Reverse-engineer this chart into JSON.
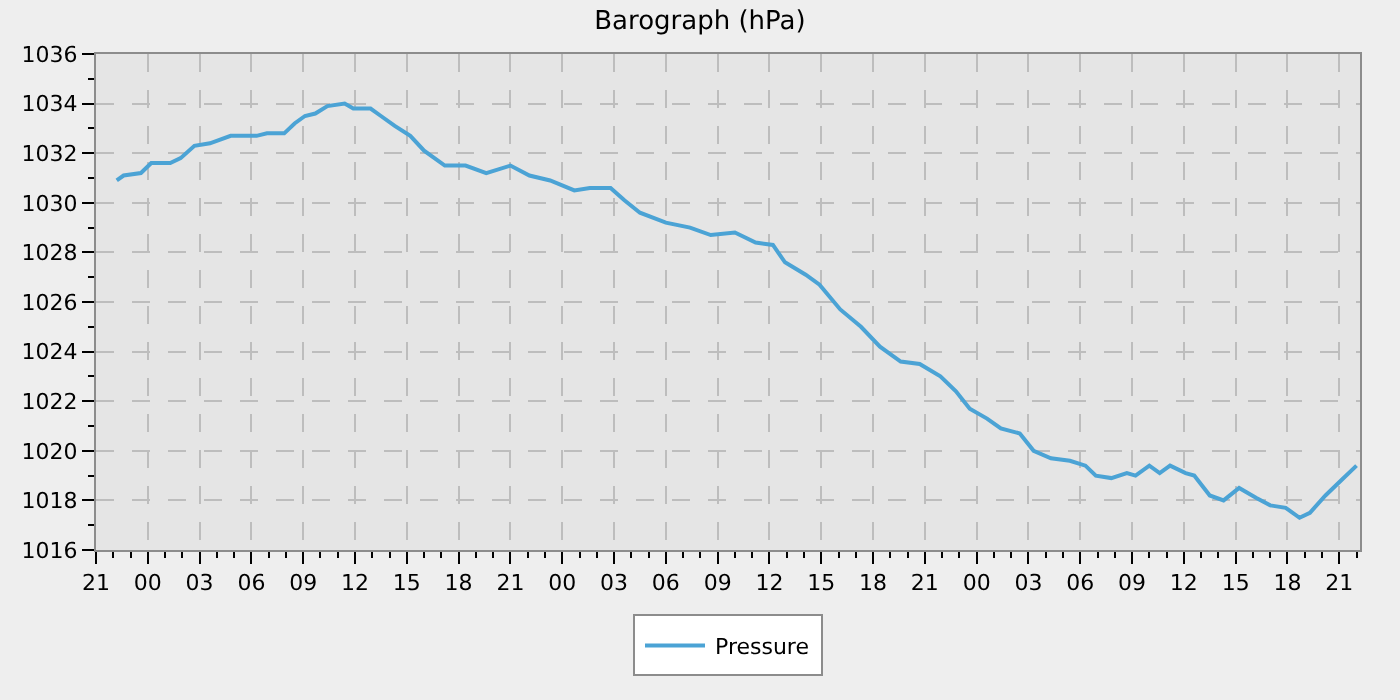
{
  "chart_data": {
    "type": "line",
    "title": "Barograph (hPa)",
    "xlim": [
      "--01-01T21:00",
      "--01-04T22:12"
    ],
    "xticks": [
      {
        "value": "--01-01T21:00",
        "label": "21"
      },
      {
        "value": "--01-02T00:00",
        "label": "00"
      },
      {
        "value": "--01-02T03:00",
        "label": "03"
      },
      {
        "value": "--01-02T06:00",
        "label": "06"
      },
      {
        "value": "--01-02T09:00",
        "label": "09"
      },
      {
        "value": "--01-02T12:00",
        "label": "12"
      },
      {
        "value": "--01-02T15:00",
        "label": "15"
      },
      {
        "value": "--01-02T18:00",
        "label": "18"
      },
      {
        "value": "--01-02T21:00",
        "label": "21"
      },
      {
        "value": "--01-03T00:00",
        "label": "00"
      },
      {
        "value": "--01-03T03:00",
        "label": "03"
      },
      {
        "value": "--01-03T06:00",
        "label": "06"
      },
      {
        "value": "--01-03T09:00",
        "label": "09"
      },
      {
        "value": "--01-03T12:00",
        "label": "12"
      },
      {
        "value": "--01-03T15:00",
        "label": "15"
      },
      {
        "value": "--01-03T18:00",
        "label": "18"
      },
      {
        "value": "--01-03T21:00",
        "label": "21"
      },
      {
        "value": "--01-04T00:00",
        "label": "00"
      },
      {
        "value": "--01-04T03:00",
        "label": "03"
      },
      {
        "value": "--01-04T06:00",
        "label": "06"
      },
      {
        "value": "--01-04T09:00",
        "label": "09"
      },
      {
        "value": "--01-04T12:00",
        "label": "12"
      },
      {
        "value": "--01-04T15:00",
        "label": "15"
      },
      {
        "value": "--01-04T18:00",
        "label": "18"
      },
      {
        "value": "--01-04T21:00",
        "label": "21"
      }
    ],
    "ylim": [
      1016,
      1036
    ],
    "yticks": [
      1016,
      1018,
      1020,
      1022,
      1024,
      1026,
      1028,
      1030,
      1032,
      1034,
      1036
    ],
    "grid": true,
    "legend": "bottom",
    "marker": "none",
    "line_style": "solid",
    "x": [
      "--01-01T22:12",
      "--01-01T22:36",
      "--01-01T23:36",
      "--01-02T00:12",
      "--01-02T01:18",
      "--01-02T01:54",
      "--01-02T02:42",
      "--01-02T03:36",
      "--01-02T04:48",
      "--01-02T06:18",
      "--01-02T06:54",
      "--01-02T07:54",
      "--01-02T08:30",
      "--01-02T09:06",
      "--01-02T09:42",
      "--01-02T10:24",
      "--01-02T11:24",
      "--01-02T11:54",
      "--01-02T12:54",
      "--01-02T13:30",
      "--01-02T14:18",
      "--01-02T15:12",
      "--01-02T16:00",
      "--01-02T17:12",
      "--01-02T18:24",
      "--01-02T19:36",
      "--01-02T21:00",
      "--01-02T22:06",
      "--01-02T23:18",
      "--01-03T00:42",
      "--01-03T01:36",
      "--01-03T02:48",
      "--01-03T03:36",
      "--01-03T04:30",
      "--01-03T06:00",
      "--01-03T07:24",
      "--01-03T08:36",
      "--01-03T10:00",
      "--01-03T11:12",
      "--01-03T12:12",
      "--01-03T12:54",
      "--01-03T14:06",
      "--01-03T14:54",
      "--01-03T16:06",
      "--01-03T17:18",
      "--01-03T18:24",
      "--01-03T19:36",
      "--01-03T20:42",
      "--01-03T21:54",
      "--01-03T22:48",
      "--01-03T23:36",
      "--01-04T00:36",
      "--01-04T01:24",
      "--01-04T02:30",
      "--01-04T03:18",
      "--01-04T04:18",
      "--01-04T05:24",
      "--01-04T06:18",
      "--01-04T06:54",
      "--01-04T07:48",
      "--01-04T08:42",
      "--01-04T09:12",
      "--01-04T10:00",
      "--01-04T10:36",
      "--01-04T11:12",
      "--01-04T12:06",
      "--01-04T12:36",
      "--01-04T13:30",
      "--01-04T14:18",
      "--01-04T15:12",
      "--01-04T16:12",
      "--01-04T17:00",
      "--01-04T17:54",
      "--01-04T18:42",
      "--01-04T19:18",
      "--01-04T20:12",
      "--01-04T21:06",
      "--01-04T22:00"
    ],
    "series": [
      {
        "name": "Pressure",
        "color": "#4ba3d5",
        "values": [
          1030.9,
          1031.1,
          1031.2,
          1031.6,
          1031.6,
          1031.8,
          1032.3,
          1032.4,
          1032.7,
          1032.7,
          1032.8,
          1032.8,
          1033.2,
          1033.5,
          1033.6,
          1033.9,
          1034.0,
          1033.8,
          1033.8,
          1033.5,
          1033.1,
          1032.7,
          1032.1,
          1031.5,
          1031.5,
          1031.2,
          1031.5,
          1031.1,
          1030.9,
          1030.5,
          1030.6,
          1030.6,
          1030.1,
          1029.6,
          1029.2,
          1029.0,
          1028.7,
          1028.8,
          1028.4,
          1028.3,
          1027.6,
          1027.1,
          1026.7,
          1025.7,
          1025.0,
          1024.2,
          1023.6,
          1023.5,
          1023.0,
          1022.4,
          1021.7,
          1021.3,
          1020.9,
          1020.7,
          1020.0,
          1019.7,
          1019.6,
          1019.4,
          1019.0,
          1018.9,
          1019.1,
          1019.0,
          1019.4,
          1019.1,
          1019.4,
          1019.1,
          1019.0,
          1018.2,
          1018.0,
          1018.5,
          1018.1,
          1017.8,
          1017.7,
          1017.3,
          1017.5,
          1018.2,
          1018.8,
          1019.4
        ]
      }
    ]
  }
}
